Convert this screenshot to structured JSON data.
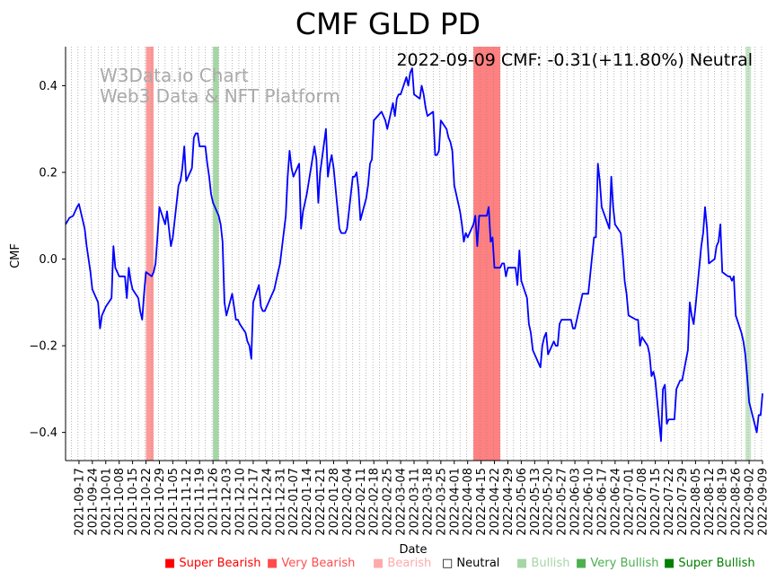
{
  "chart_data": {
    "type": "line",
    "title": "CMF GLD PD",
    "annotation": "2022-09-09 CMF: -0.31(+11.80%) Neutral",
    "watermark": [
      "W3Data.io Chart",
      "Web3 Data & NFT Platform"
    ],
    "xlabel": "Date",
    "ylabel": "CMF",
    "xlim": [
      "2021-09-10",
      "2022-09-09"
    ],
    "ylim": [
      -0.465,
      0.49
    ],
    "yticks": [
      0.4,
      0.2,
      0.0,
      -0.2,
      -0.4
    ],
    "ytick_labels": [
      "0.4",
      "0.2",
      "0.0",
      "−0.2",
      "−0.4"
    ],
    "xticks": [
      "2021-09-17",
      "2021-09-24",
      "2021-10-01",
      "2021-10-08",
      "2021-10-15",
      "2021-10-22",
      "2021-10-29",
      "2021-11-05",
      "2021-11-12",
      "2021-11-19",
      "2021-11-26",
      "2021-12-03",
      "2021-12-10",
      "2021-12-17",
      "2021-12-24",
      "2021-12-31",
      "2022-01-07",
      "2022-01-14",
      "2022-01-21",
      "2022-01-28",
      "2022-02-04",
      "2022-02-11",
      "2022-02-18",
      "2022-02-25",
      "2022-03-04",
      "2022-03-11",
      "2022-03-18",
      "2022-03-25",
      "2022-04-01",
      "2022-04-08",
      "2022-04-15",
      "2022-04-22",
      "2022-04-29",
      "2022-05-06",
      "2022-05-13",
      "2022-05-20",
      "2022-05-27",
      "2022-06-03",
      "2022-06-10",
      "2022-06-17",
      "2022-06-24",
      "2022-07-01",
      "2022-07-08",
      "2022-07-15",
      "2022-07-22",
      "2022-07-29",
      "2022-08-05",
      "2022-08-12",
      "2022-08-19",
      "2022-08-26",
      "2022-09-02",
      "2022-09-09"
    ],
    "grid": "vertical dotted",
    "line_color": "#0000ff",
    "series": [
      {
        "x": [
          "2021-09-10",
          "2021-09-12",
          "2021-09-14",
          "2021-09-16",
          "2021-09-17",
          "2021-09-20",
          "2021-09-21",
          "2021-09-22",
          "2021-09-23",
          "2021-09-24",
          "2021-09-27",
          "2021-09-28",
          "2021-09-29",
          "2021-09-30",
          "2021-10-01",
          "2021-10-04",
          "2021-10-05",
          "2021-10-06",
          "2021-10-07",
          "2021-10-08",
          "2021-10-11",
          "2021-10-12",
          "2021-10-13",
          "2021-10-14",
          "2021-10-15",
          "2021-10-18",
          "2021-10-19",
          "2021-10-20",
          "2021-10-21",
          "2021-10-22",
          "2021-10-25",
          "2021-10-26",
          "2021-10-27",
          "2021-10-28",
          "2021-10-29",
          "2021-11-01",
          "2021-11-02",
          "2021-11-03",
          "2021-11-04",
          "2021-11-05",
          "2021-11-08",
          "2021-11-09",
          "2021-11-10",
          "2021-11-11",
          "2021-11-12",
          "2021-11-15",
          "2021-11-16",
          "2021-11-17",
          "2021-11-18",
          "2021-11-19",
          "2021-11-22",
          "2021-11-23",
          "2021-11-24",
          "2021-11-25",
          "2021-11-26",
          "2021-11-29",
          "2021-11-30",
          "2021-12-01",
          "2021-12-02",
          "2021-12-03",
          "2021-12-06",
          "2021-12-07",
          "2021-12-08",
          "2021-12-09",
          "2021-12-10",
          "2021-12-13",
          "2021-12-14",
          "2021-12-15",
          "2021-12-16",
          "2021-12-17",
          "2021-12-20",
          "2021-12-21",
          "2021-12-22",
          "2021-12-23",
          "2021-12-27",
          "2021-12-28",
          "2021-12-29",
          "2021-12-30",
          "2021-12-31",
          "2022-01-03",
          "2022-01-04",
          "2022-01-05",
          "2022-01-06",
          "2022-01-07",
          "2022-01-10",
          "2022-01-11",
          "2022-01-12",
          "2022-01-13",
          "2022-01-14",
          "2022-01-18",
          "2022-01-19",
          "2022-01-20",
          "2022-01-21",
          "2022-01-24",
          "2022-01-25",
          "2022-01-26",
          "2022-01-27",
          "2022-01-28",
          "2022-01-31",
          "2022-02-01",
          "2022-02-02",
          "2022-02-03",
          "2022-02-04",
          "2022-02-07",
          "2022-02-08",
          "2022-02-09",
          "2022-02-10",
          "2022-02-11",
          "2022-02-14",
          "2022-02-15",
          "2022-02-16",
          "2022-02-17",
          "2022-02-18",
          "2022-02-22",
          "2022-02-23",
          "2022-02-24",
          "2022-02-25",
          "2022-02-28",
          "2022-03-01",
          "2022-03-02",
          "2022-03-03",
          "2022-03-04",
          "2022-03-07",
          "2022-03-08",
          "2022-03-09",
          "2022-03-10",
          "2022-03-11",
          "2022-03-14",
          "2022-03-15",
          "2022-03-16",
          "2022-03-17",
          "2022-03-18",
          "2022-03-21",
          "2022-03-22",
          "2022-03-23",
          "2022-03-24",
          "2022-03-25",
          "2022-03-28",
          "2022-03-29",
          "2022-03-30",
          "2022-03-31",
          "2022-04-01",
          "2022-04-04",
          "2022-04-05",
          "2022-04-06",
          "2022-04-07",
          "2022-04-08",
          "2022-04-11",
          "2022-04-12",
          "2022-04-13",
          "2022-04-14",
          "2022-04-18",
          "2022-04-19",
          "2022-04-20",
          "2022-04-21",
          "2022-04-22",
          "2022-04-25",
          "2022-04-26",
          "2022-04-27",
          "2022-04-28",
          "2022-04-29",
          "2022-05-02",
          "2022-05-03",
          "2022-05-04",
          "2022-05-05",
          "2022-05-06",
          "2022-05-09",
          "2022-05-10",
          "2022-05-11",
          "2022-05-12",
          "2022-05-13",
          "2022-05-16",
          "2022-05-17",
          "2022-05-18",
          "2022-05-19",
          "2022-05-20",
          "2022-05-23",
          "2022-05-24",
          "2022-05-25",
          "2022-05-26",
          "2022-05-27",
          "2022-05-31",
          "2022-06-01",
          "2022-06-02",
          "2022-06-03",
          "2022-06-06",
          "2022-06-07",
          "2022-06-08",
          "2022-06-09",
          "2022-06-10",
          "2022-06-13",
          "2022-06-14",
          "2022-06-15",
          "2022-06-16",
          "2022-06-17",
          "2022-06-21",
          "2022-06-22",
          "2022-06-23",
          "2022-06-24",
          "2022-06-27",
          "2022-06-28",
          "2022-06-29",
          "2022-06-30",
          "2022-07-01",
          "2022-07-05",
          "2022-07-06",
          "2022-07-07",
          "2022-07-08",
          "2022-07-11",
          "2022-07-12",
          "2022-07-13",
          "2022-07-14",
          "2022-07-15",
          "2022-07-18",
          "2022-07-19",
          "2022-07-20",
          "2022-07-21",
          "2022-07-22",
          "2022-07-25",
          "2022-07-26",
          "2022-07-27",
          "2022-07-28",
          "2022-07-29",
          "2022-08-01",
          "2022-08-02",
          "2022-08-03",
          "2022-08-04",
          "2022-08-05",
          "2022-08-08",
          "2022-08-09",
          "2022-08-10",
          "2022-08-11",
          "2022-08-12",
          "2022-08-15",
          "2022-08-16",
          "2022-08-17",
          "2022-08-18",
          "2022-08-19",
          "2022-08-22",
          "2022-08-23",
          "2022-08-24",
          "2022-08-25",
          "2022-08-26",
          "2022-08-29",
          "2022-08-30",
          "2022-08-31",
          "2022-09-01",
          "2022-09-02",
          "2022-09-06",
          "2022-09-07",
          "2022-09-08",
          "2022-09-09"
        ],
        "y": [
          0.08,
          0.095,
          0.1,
          0.12,
          0.127,
          0.07,
          0.03,
          0.0,
          -0.03,
          -0.07,
          -0.1,
          -0.16,
          -0.13,
          -0.12,
          -0.11,
          -0.09,
          0.03,
          -0.02,
          -0.03,
          -0.04,
          -0.04,
          -0.09,
          -0.02,
          -0.05,
          -0.07,
          -0.09,
          -0.12,
          -0.14,
          -0.08,
          -0.03,
          -0.04,
          -0.03,
          -0.01,
          0.05,
          0.12,
          0.08,
          0.11,
          0.07,
          0.03,
          0.05,
          0.17,
          0.18,
          0.21,
          0.26,
          0.18,
          0.21,
          0.28,
          0.29,
          0.29,
          0.26,
          0.26,
          0.22,
          0.19,
          0.15,
          0.13,
          0.1,
          0.08,
          0.04,
          -0.1,
          -0.13,
          -0.08,
          -0.11,
          -0.14,
          -0.14,
          -0.15,
          -0.17,
          -0.19,
          -0.2,
          -0.23,
          -0.1,
          -0.06,
          -0.11,
          -0.12,
          -0.12,
          -0.08,
          -0.07,
          -0.05,
          -0.03,
          -0.01,
          0.1,
          0.19,
          0.25,
          0.21,
          0.19,
          0.22,
          0.07,
          0.11,
          0.13,
          0.15,
          0.26,
          0.23,
          0.13,
          0.2,
          0.3,
          0.19,
          0.22,
          0.24,
          0.21,
          0.07,
          0.06,
          0.06,
          0.06,
          0.07,
          0.19,
          0.19,
          0.2,
          0.16,
          0.09,
          0.14,
          0.17,
          0.22,
          0.23,
          0.32,
          0.34,
          0.33,
          0.32,
          0.3,
          0.36,
          0.33,
          0.37,
          0.38,
          0.38,
          0.42,
          0.4,
          0.43,
          0.44,
          0.38,
          0.37,
          0.4,
          0.38,
          0.35,
          0.33,
          0.34,
          0.24,
          0.24,
          0.25,
          0.32,
          0.3,
          0.28,
          0.27,
          0.25,
          0.17,
          0.11,
          0.08,
          0.04,
          0.06,
          0.05,
          0.08,
          0.1,
          0.03,
          0.1,
          0.1,
          0.12,
          0.04,
          0.05,
          -0.02,
          -0.02,
          -0.01,
          -0.01,
          -0.04,
          -0.02,
          -0.02,
          -0.02,
          -0.06,
          0.02,
          -0.05,
          -0.09,
          -0.15,
          -0.17,
          -0.21,
          -0.22,
          -0.25,
          -0.2,
          -0.18,
          -0.17,
          -0.22,
          -0.19,
          -0.2,
          -0.2,
          -0.15,
          -0.14,
          -0.14,
          -0.14,
          -0.16,
          -0.16,
          -0.1,
          -0.08,
          -0.08,
          -0.08,
          -0.08,
          0.05,
          0.05,
          0.22,
          0.18,
          0.12,
          0.07,
          0.19,
          0.12,
          0.08,
          0.06,
          0.01,
          -0.05,
          -0.08,
          -0.13,
          -0.14,
          -0.14,
          -0.2,
          -0.18,
          -0.2,
          -0.22,
          -0.27,
          -0.26,
          -0.28,
          -0.42,
          -0.3,
          -0.29,
          -0.38,
          -0.37,
          -0.37,
          -0.3,
          -0.29,
          -0.28,
          -0.28,
          -0.21,
          -0.1,
          -0.13,
          -0.15,
          -0.11,
          0.03,
          0.06,
          0.12,
          0.07,
          -0.01,
          0.0,
          0.03,
          0.04,
          0.08,
          -0.03,
          -0.04,
          -0.04,
          -0.05,
          -0.04,
          -0.13,
          -0.17,
          -0.19,
          -0.22,
          -0.27,
          -0.33,
          -0.4,
          -0.36,
          -0.36,
          -0.31
        ]
      }
    ],
    "signal_bands": [
      {
        "start": "2021-10-22",
        "end": "2021-10-26",
        "signal": "Bearish",
        "color": "#ff9a9a"
      },
      {
        "start": "2021-11-26",
        "end": "2021-11-29",
        "signal": "Very Bullish",
        "color": "#a5d6a5"
      },
      {
        "start": "2022-04-11",
        "end": "2022-04-25",
        "signal": "Super Bearish",
        "color": "#ff8080"
      },
      {
        "start": "2022-08-31",
        "end": "2022-09-03",
        "signal": "Bullish",
        "color": "#c8e6c8"
      }
    ],
    "legend": [
      {
        "label": "Super Bearish",
        "marker": "■",
        "color": "#ff0000"
      },
      {
        "label": "Very Bearish",
        "marker": "■",
        "color": "#ff4d4d"
      },
      {
        "label": "Bearish",
        "marker": "■",
        "color": "#ffaaaa"
      },
      {
        "label": "Neutral",
        "marker": "□",
        "color": "#000000"
      },
      {
        "label": "Bullish",
        "marker": "■",
        "color": "#a5d6a5"
      },
      {
        "label": "Very Bullish",
        "marker": "■",
        "color": "#4caf50"
      },
      {
        "label": "Super Bullish",
        "marker": "■",
        "color": "#008000"
      }
    ]
  }
}
